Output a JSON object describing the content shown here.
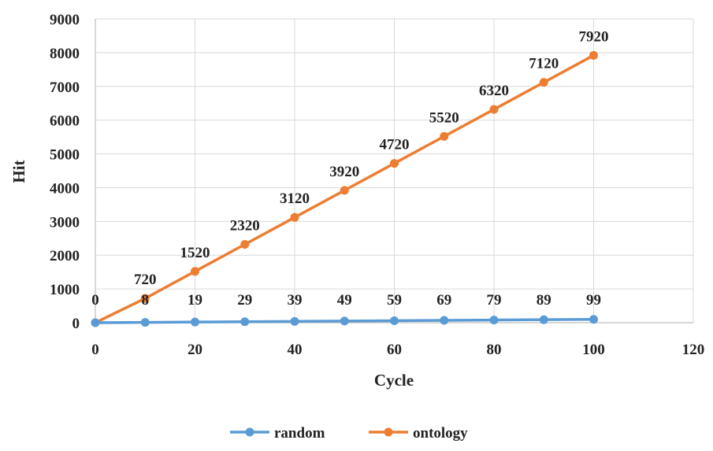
{
  "chart_data": {
    "type": "line",
    "xlabel": "Cycle",
    "ylabel": "Hit",
    "xlim": [
      0,
      120
    ],
    "ylim": [
      0,
      9000
    ],
    "x_ticks": [
      0,
      20,
      40,
      60,
      80,
      100,
      120
    ],
    "y_ticks": [
      0,
      1000,
      2000,
      3000,
      4000,
      5000,
      6000,
      7000,
      8000,
      9000
    ],
    "grid": true,
    "legend_position": "bottom",
    "x": [
      0,
      10,
      20,
      30,
      40,
      50,
      60,
      70,
      80,
      90,
      100
    ],
    "series": [
      {
        "name": "random",
        "color": "#5b9bd5",
        "values": [
          0,
          8,
          19,
          29,
          39,
          49,
          59,
          69,
          79,
          89,
          99
        ],
        "labels": [
          "0",
          "8",
          "19",
          "29",
          "39",
          "49",
          "59",
          "69",
          "79",
          "89",
          "99"
        ]
      },
      {
        "name": "ontology",
        "color": "#ed7d31",
        "values": [
          0,
          720,
          1520,
          2320,
          3120,
          3920,
          4720,
          5520,
          6320,
          7120,
          7920
        ],
        "labels": [
          "",
          "720",
          "1520",
          "2320",
          "3120",
          "3920",
          "4720",
          "5520",
          "6320",
          "7120",
          "7920"
        ]
      }
    ]
  }
}
